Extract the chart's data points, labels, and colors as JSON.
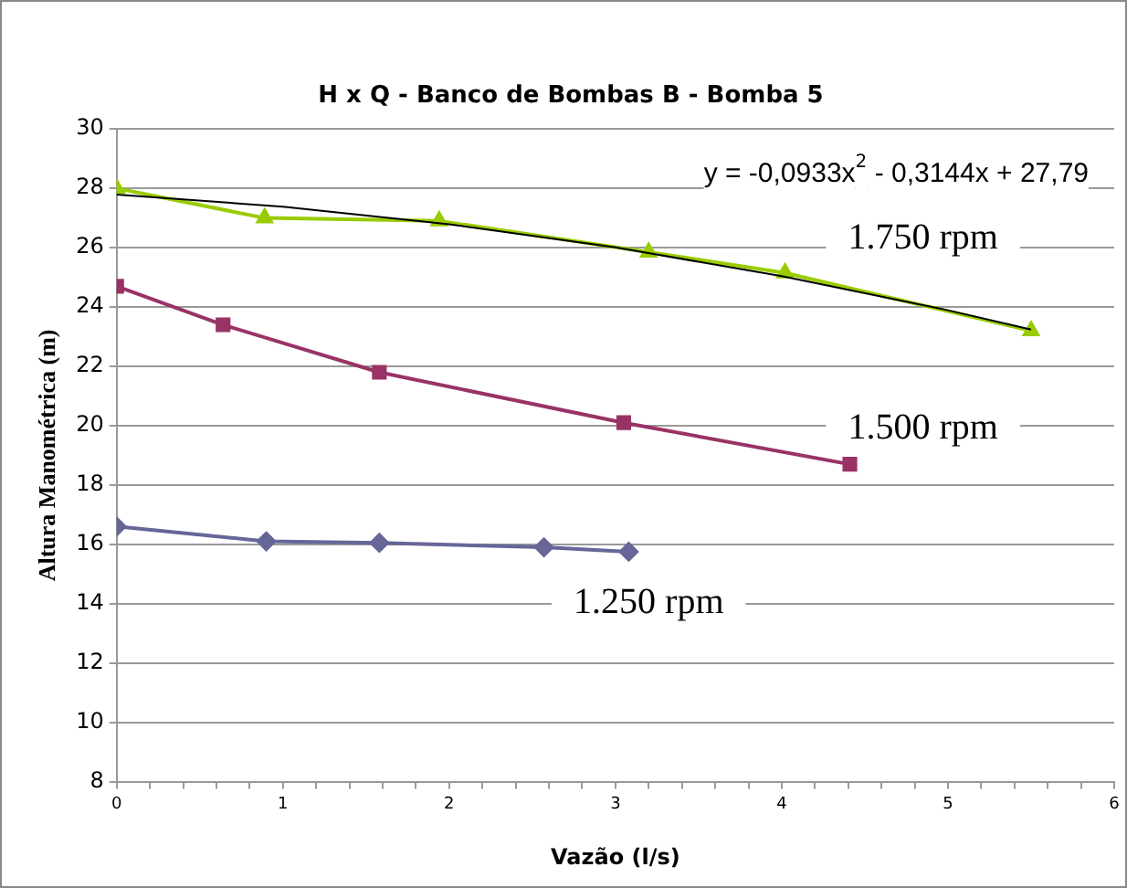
{
  "chart_data": {
    "type": "line",
    "title": "H x Q - Banco de Bombas B - Bomba 5",
    "xlabel": "Vazão (l/s)",
    "ylabel": "Altura Manométrica (m)",
    "xlim": [
      0,
      6
    ],
    "ylim": [
      8,
      30
    ],
    "xticks": [
      0,
      {
        "value": 0.2,
        "label": null
      },
      {
        "value": 0.4,
        "label": null
      },
      {
        "value": 0.6,
        "label": null
      },
      {
        "value": 0.8,
        "label": null
      },
      1,
      {
        "value": 1.2,
        "label": null
      },
      {
        "value": 1.4,
        "label": null
      },
      {
        "value": 1.6,
        "label": null
      },
      {
        "value": 1.8,
        "label": null
      },
      2,
      {
        "value": 2.2,
        "label": null
      },
      {
        "value": 2.4,
        "label": null
      },
      {
        "value": 2.6,
        "label": null
      },
      {
        "value": 2.8,
        "label": null
      },
      3,
      {
        "value": 3.2,
        "label": null
      },
      {
        "value": 3.4,
        "label": null
      },
      {
        "value": 3.6,
        "label": null
      },
      {
        "value": 3.8,
        "label": null
      },
      4,
      {
        "value": 4.2,
        "label": null
      },
      {
        "value": 4.4,
        "label": null
      },
      {
        "value": 4.6,
        "label": null
      },
      {
        "value": 4.8,
        "label": null
      },
      5,
      {
        "value": 5.2,
        "label": null
      },
      {
        "value": 5.4,
        "label": null
      },
      {
        "value": 5.6,
        "label": null
      },
      {
        "value": 5.8,
        "label": null
      },
      6
    ],
    "yticks": [
      8,
      10,
      12,
      14,
      16,
      18,
      20,
      22,
      24,
      26,
      28,
      30
    ],
    "grid": "y",
    "legend": false,
    "line_style": "solid",
    "series": [
      {
        "name": "1.750 rpm",
        "color": "#99cc00",
        "marker": "triangle",
        "x": [
          0,
          0.89,
          1.94,
          3.2,
          4.02,
          5.5
        ],
        "values": [
          28.0,
          27.0,
          26.9,
          25.85,
          25.15,
          23.2
        ]
      },
      {
        "name": "1.500 rpm",
        "color": "#993366",
        "marker": "square",
        "x": [
          0,
          0.64,
          1.58,
          3.05,
          4.41
        ],
        "values": [
          24.7,
          23.4,
          21.8,
          20.1,
          18.7
        ]
      },
      {
        "name": "1.250 rpm",
        "color": "#666699",
        "marker": "diamond",
        "x": [
          0,
          0.9,
          1.58,
          2.57,
          3.08
        ],
        "values": [
          16.6,
          16.1,
          16.05,
          15.9,
          15.75
        ]
      },
      {
        "color": "#000000",
        "marker": "none",
        "x": [
          0,
          1,
          2,
          3,
          4,
          5,
          5.5
        ],
        "values": [
          27.79,
          27.38,
          26.79,
          26.01,
          25.04,
          23.89,
          23.24
        ]
      }
    ],
    "annotations": [
      "y = -0,0933x$^{2}$ - 0,3144x + 27,79"
    ]
  }
}
